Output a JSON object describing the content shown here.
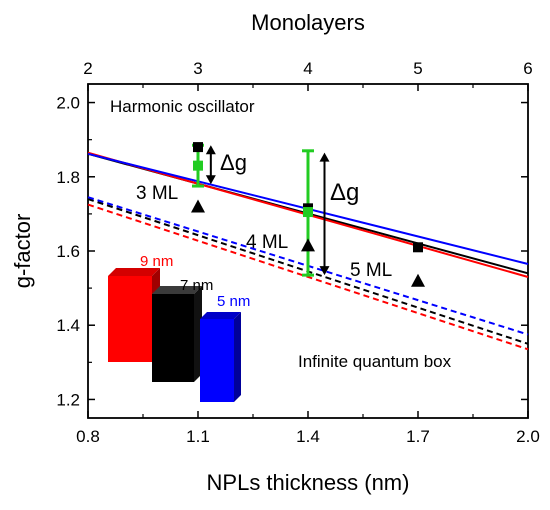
{
  "chart_data": {
    "type": "line",
    "xlabel": "NPLs thickness (nm)",
    "ylabel": "g-factor",
    "x2label": "Monolayers",
    "xlim": [
      0.8,
      2.0
    ],
    "ylim": [
      1.15,
      2.05
    ],
    "x2lim": [
      2,
      6
    ],
    "x_ticks": [
      0.8,
      1.1,
      1.4,
      1.7,
      2.0
    ],
    "x_tick_labels": [
      "0.8",
      "1.1",
      "1.4",
      "1.7",
      "2.0"
    ],
    "y_ticks": [
      1.2,
      1.4,
      1.6,
      1.8,
      2.0
    ],
    "y_tick_labels": [
      "1.2",
      "1.4",
      "1.6",
      "1.8",
      "2.0"
    ],
    "x2_ticks": [
      2,
      3,
      4,
      5,
      6
    ],
    "x2_tick_labels": [
      "2",
      "3",
      "4",
      "5",
      "6"
    ],
    "grid": false,
    "series": [
      {
        "style": "solid",
        "color": "#000000",
        "x": [
          0.8,
          2.0
        ],
        "y": [
          1.862,
          1.54
        ]
      },
      {
        "style": "solid",
        "color": "#ff0000",
        "x": [
          0.8,
          2.0
        ],
        "y": [
          1.865,
          1.53
        ]
      },
      {
        "style": "solid",
        "color": "#0000ff",
        "x": [
          0.8,
          2.0
        ],
        "y": [
          1.862,
          1.565
        ]
      },
      {
        "style": "dashed",
        "color": "#000000",
        "x": [
          0.8,
          2.0
        ],
        "y": [
          1.74,
          1.35
        ]
      },
      {
        "style": "dashed",
        "color": "#ff0000",
        "x": [
          0.8,
          2.0
        ],
        "y": [
          1.725,
          1.335
        ]
      },
      {
        "style": "dashed",
        "color": "#0000ff",
        "x": [
          0.8,
          2.0
        ],
        "y": [
          1.745,
          1.375
        ]
      }
    ],
    "square_points": [
      {
        "x": 1.1,
        "y": 1.88
      },
      {
        "x": 1.4,
        "y": 1.715
      },
      {
        "x": 1.7,
        "y": 1.61
      }
    ],
    "triangle_points": [
      {
        "x": 1.1,
        "y": 1.72
      },
      {
        "x": 1.4,
        "y": 1.615
      },
      {
        "x": 1.7,
        "y": 1.52
      }
    ],
    "green_points": [
      {
        "x": 1.1,
        "y": 1.83,
        "ylow": 1.775,
        "yhigh": 1.885
      },
      {
        "x": 1.4,
        "y": 1.705,
        "ylow": 1.535,
        "yhigh": 1.87
      }
    ],
    "arrows": [
      {
        "x": 1.135,
        "y1": 1.885,
        "y2": 1.78
      },
      {
        "x": 1.445,
        "y1": 1.865,
        "y2": 1.535
      }
    ],
    "annotations": {
      "harmonic": "Harmonic oscillator",
      "infinite": "Infinite quantum box",
      "delta_g": "Δg",
      "ml3": "3 ML",
      "ml4": "4 ML",
      "ml5": "5 ML"
    },
    "inset": {
      "blocks": [
        {
          "label": "9 nm",
          "color": "#ff0000"
        },
        {
          "label": "7 nm",
          "color": "#000000"
        },
        {
          "label": "5 nm",
          "color": "#0000ff"
        }
      ]
    }
  }
}
